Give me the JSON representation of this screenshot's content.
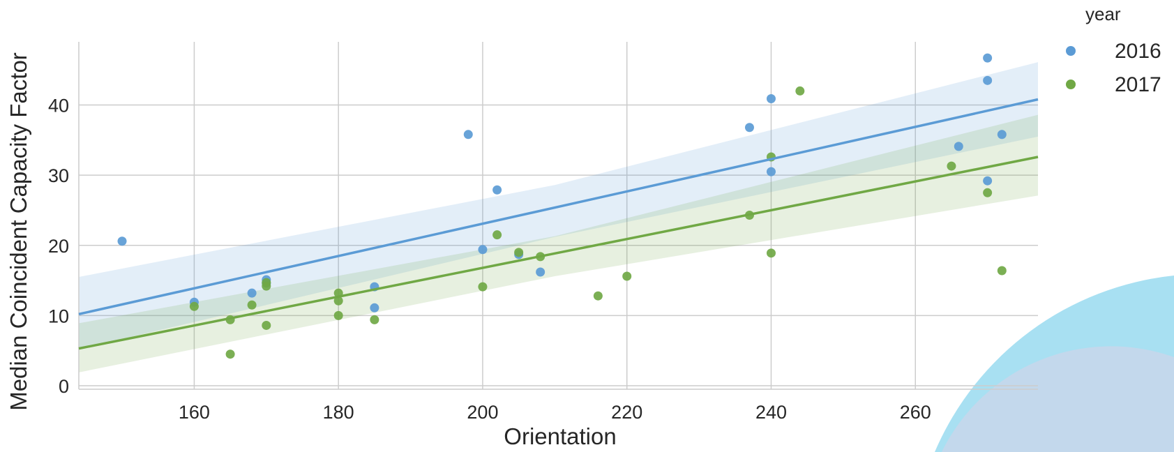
{
  "chart_data": {
    "type": "scatter",
    "title": "",
    "xlabel": "Orientation",
    "ylabel": "Median Coincident Capacity Factor",
    "xlim": [
      144,
      277
    ],
    "ylim": [
      -0.5,
      49
    ],
    "xticks": [
      160,
      180,
      200,
      220,
      240,
      260
    ],
    "yticks": [
      0,
      10,
      20,
      30,
      40
    ],
    "grid": true,
    "legend": {
      "title": "year",
      "position": "right"
    },
    "series": [
      {
        "name": "2016",
        "color": "#5b9bd5",
        "points": [
          [
            150,
            20.6
          ],
          [
            160,
            11.9
          ],
          [
            168,
            13.2
          ],
          [
            170,
            15.1
          ],
          [
            170,
            14.6
          ],
          [
            185,
            14.1
          ],
          [
            185,
            11.1
          ],
          [
            198,
            35.8
          ],
          [
            200,
            19.4
          ],
          [
            202,
            27.9
          ],
          [
            205,
            18.7
          ],
          [
            208,
            16.2
          ],
          [
            237,
            36.8
          ],
          [
            240,
            40.9
          ],
          [
            240,
            30.5
          ],
          [
            266,
            34.1
          ],
          [
            270,
            46.7
          ],
          [
            270,
            43.5
          ],
          [
            270,
            29.2
          ],
          [
            272,
            35.8
          ]
        ],
        "fit": [
          [
            144,
            10.2
          ],
          [
            277,
            40.8
          ]
        ],
        "ci_band": [
          [
            144,
            5.2,
            15.5
          ],
          [
            210,
            21.2,
            28.6
          ],
          [
            277,
            35.5,
            46.1
          ]
        ]
      },
      {
        "name": "2017",
        "color": "#70a845",
        "points": [
          [
            160,
            11.3
          ],
          [
            165,
            9.4
          ],
          [
            165,
            4.5
          ],
          [
            168,
            11.5
          ],
          [
            170,
            14.7
          ],
          [
            170,
            14.2
          ],
          [
            170,
            8.6
          ],
          [
            180,
            13.2
          ],
          [
            180,
            12.1
          ],
          [
            180,
            10.0
          ],
          [
            185,
            9.4
          ],
          [
            200,
            14.1
          ],
          [
            202,
            21.5
          ],
          [
            205,
            19.0
          ],
          [
            208,
            18.4
          ],
          [
            216,
            12.8
          ],
          [
            220,
            15.6
          ],
          [
            237,
            24.3
          ],
          [
            240,
            32.6
          ],
          [
            240,
            18.9
          ],
          [
            244,
            42.0
          ],
          [
            265,
            31.3
          ],
          [
            270,
            27.5
          ],
          [
            272,
            16.4
          ]
        ],
        "fit": [
          [
            144,
            5.3
          ],
          [
            277,
            32.6
          ]
        ],
        "ci_band": [
          [
            144,
            1.9,
            8.9
          ],
          [
            210,
            15.6,
            21.3
          ],
          [
            277,
            27.1,
            38.6
          ]
        ]
      }
    ]
  },
  "decor": {
    "arc_outer_color": "#a8e0f2",
    "arc_inner_color": "#c3d8ec"
  }
}
